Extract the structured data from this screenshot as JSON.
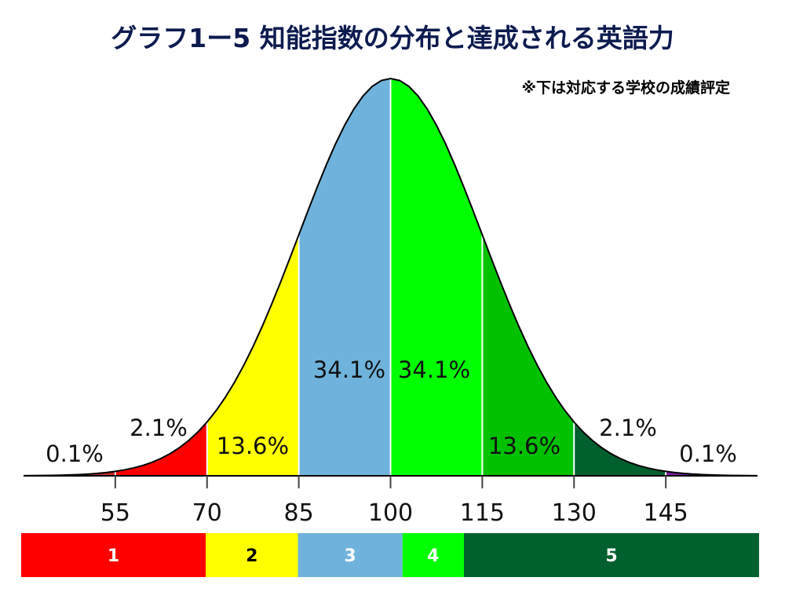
{
  "chart_data": {
    "type": "area",
    "title": "グラフ1ー5 知能指数の分布と達成される英語力",
    "subtitle": "※下は対応する学校の成績評定",
    "x_ticks": [
      55,
      70,
      85,
      100,
      115,
      130,
      145
    ],
    "x_range": [
      40,
      160
    ],
    "mean": 100,
    "sd": 15,
    "segments": [
      {
        "x_start": 40,
        "x_end": 55,
        "percent_label": "0.1%",
        "color": "#c62828"
      },
      {
        "x_start": 55,
        "x_end": 70,
        "percent_label": "2.1%",
        "color": "#ff0000"
      },
      {
        "x_start": 70,
        "x_end": 85,
        "percent_label": "13.6%",
        "color": "#ffff00"
      },
      {
        "x_start": 85,
        "x_end": 100,
        "percent_label": "34.1%",
        "color": "#6fb3dc"
      },
      {
        "x_start": 100,
        "x_end": 115,
        "percent_label": "34.1%",
        "color": "#00ff00"
      },
      {
        "x_start": 115,
        "x_end": 130,
        "percent_label": "13.6%",
        "color": "#00c000"
      },
      {
        "x_start": 130,
        "x_end": 145,
        "percent_label": "2.1%",
        "color": "#00602e"
      },
      {
        "x_start": 145,
        "x_end": 160,
        "percent_label": "0.1%",
        "color": "#7b1fa2"
      }
    ],
    "grades": [
      {
        "label": "1",
        "x_start": 40,
        "x_end": 70,
        "color": "#ff0000",
        "text_color": "#ffffff"
      },
      {
        "label": "2",
        "x_start": 70,
        "x_end": 85,
        "color": "#ffff00",
        "text_color": "#000000"
      },
      {
        "label": "3",
        "x_start": 85,
        "x_end": 102,
        "color": "#6fb3dc",
        "text_color": "#ffffff"
      },
      {
        "label": "4",
        "x_start": 102,
        "x_end": 112,
        "color": "#00ff00",
        "text_color": "#ffffff"
      },
      {
        "label": "5",
        "x_start": 112,
        "x_end": 160,
        "color": "#00602e",
        "text_color": "#ffffff"
      }
    ],
    "title_color": "#0d1b4f",
    "curve_color": "#000000",
    "divider_color": "#ffffff",
    "grid": false,
    "legend": "none"
  }
}
